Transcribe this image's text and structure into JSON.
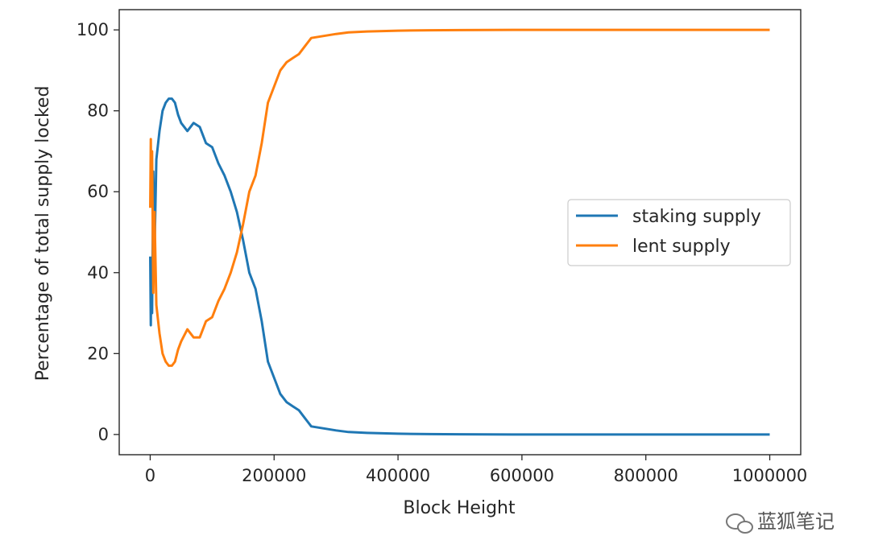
{
  "chart_data": {
    "type": "line",
    "xlabel": "Block Height",
    "ylabel": "Percentage of total supply locked",
    "xlim": [
      -50000,
      1050000
    ],
    "ylim": [
      -5,
      105
    ],
    "xticks": [
      0,
      200000,
      400000,
      600000,
      800000,
      1000000
    ],
    "xtick_labels": [
      "0",
      "200000",
      "400000",
      "600000",
      "800000",
      "1000000"
    ],
    "yticks": [
      0,
      20,
      40,
      60,
      80,
      100
    ],
    "ytick_labels": [
      "0",
      "20",
      "40",
      "60",
      "80",
      "100"
    ],
    "grid": false,
    "legend_position": "center-right",
    "series": [
      {
        "name": "staking supply",
        "color": "#1f77b4",
        "x": [
          0,
          1000,
          2000,
          3000,
          5000,
          7000,
          10000,
          15000,
          20000,
          25000,
          30000,
          35000,
          40000,
          45000,
          50000,
          60000,
          70000,
          80000,
          90000,
          100000,
          110000,
          120000,
          130000,
          140000,
          150000,
          160000,
          170000,
          180000,
          190000,
          200000,
          210000,
          220000,
          230000,
          240000,
          250000,
          260000,
          280000,
          300000,
          320000,
          350000,
          400000,
          450000,
          500000,
          600000,
          700000,
          800000,
          900000,
          1000000
        ],
        "y": [
          44,
          27,
          42,
          30,
          65,
          45,
          68,
          75,
          80,
          82,
          83,
          83,
          82,
          79,
          77,
          75,
          77,
          76,
          72,
          71,
          67,
          64,
          60,
          55,
          48,
          40,
          36,
          28,
          18,
          14,
          10,
          8,
          7,
          6,
          4,
          2,
          1.5,
          1,
          0.6,
          0.4,
          0.2,
          0.1,
          0.05,
          0,
          0,
          0,
          0,
          0
        ]
      },
      {
        "name": "lent supply",
        "color": "#ff7f0e",
        "x": [
          0,
          1000,
          2000,
          3000,
          5000,
          7000,
          10000,
          15000,
          20000,
          25000,
          30000,
          35000,
          40000,
          45000,
          50000,
          60000,
          70000,
          80000,
          90000,
          100000,
          110000,
          120000,
          130000,
          140000,
          150000,
          160000,
          170000,
          180000,
          190000,
          200000,
          210000,
          220000,
          230000,
          240000,
          250000,
          260000,
          280000,
          300000,
          320000,
          350000,
          400000,
          450000,
          500000,
          600000,
          700000,
          800000,
          900000,
          1000000
        ],
        "y": [
          56,
          73,
          58,
          70,
          35,
          55,
          32,
          25,
          20,
          18,
          17,
          17,
          18,
          21,
          23,
          26,
          24,
          24,
          28,
          29,
          33,
          36,
          40,
          45,
          52,
          60,
          64,
          72,
          82,
          86,
          90,
          92,
          93,
          94,
          96,
          98,
          98.5,
          99,
          99.4,
          99.6,
          99.8,
          99.9,
          99.95,
          100,
          100,
          100,
          100,
          100
        ]
      }
    ]
  },
  "watermark": {
    "text": "蓝狐笔记",
    "icon": "wechat-icon"
  }
}
